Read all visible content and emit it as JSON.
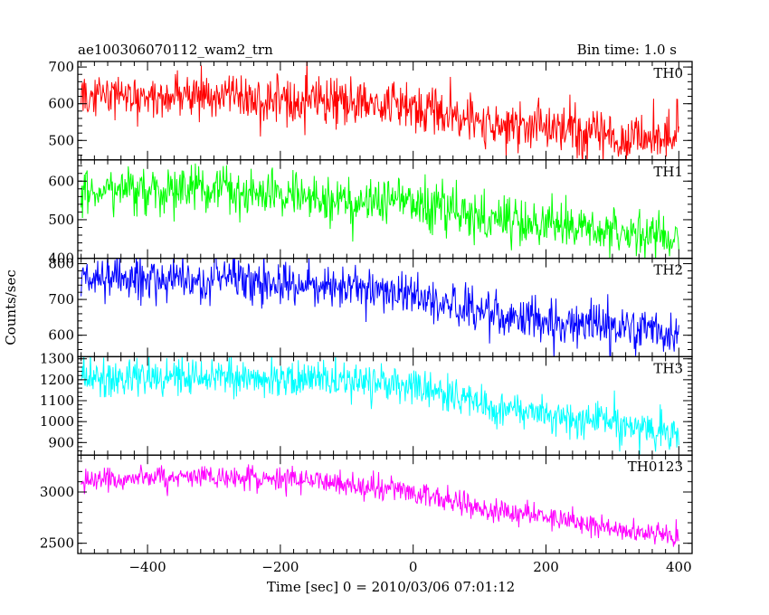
{
  "header": {
    "left_title": "ae100306070112_wam2_trn",
    "right_title": "Bin time: 1.0 s"
  },
  "axes": {
    "ylabel": "Counts/sec",
    "xlabel": "Time [sec] 0 = 2010/03/06 07:01:12"
  },
  "chart_data": {
    "type": "line",
    "x_range": [
      -505,
      420
    ],
    "x_ticks": [
      -400,
      -200,
      0,
      200,
      400
    ],
    "bin_time_s": 1.0,
    "panels": [
      {
        "name": "TH0",
        "color": "#ff0000",
        "y_range": [
          447,
          715
        ],
        "y_ticks": [
          500,
          600,
          700
        ],
        "trend": [
          [
            -500,
            615
          ],
          [
            -300,
            625
          ],
          [
            -150,
            610
          ],
          [
            0,
            590
          ],
          [
            100,
            555
          ],
          [
            250,
            525
          ],
          [
            400,
            505
          ]
        ],
        "noise_sd": 34
      },
      {
        "name": "TH1",
        "color": "#00ff00",
        "y_range": [
          400,
          655
        ],
        "y_ticks": [
          400,
          500,
          600
        ],
        "trend": [
          [
            -500,
            570
          ],
          [
            -300,
            580
          ],
          [
            -150,
            560
          ],
          [
            0,
            540
          ],
          [
            100,
            505
          ],
          [
            250,
            475
          ],
          [
            400,
            455
          ]
        ],
        "noise_sd": 30
      },
      {
        "name": "TH2",
        "color": "#0000ff",
        "y_range": [
          540,
          815
        ],
        "y_ticks": [
          600,
          700,
          800
        ],
        "trend": [
          [
            -500,
            755
          ],
          [
            -300,
            755
          ],
          [
            -150,
            745
          ],
          [
            0,
            710
          ],
          [
            100,
            665
          ],
          [
            250,
            630
          ],
          [
            400,
            600
          ]
        ],
        "noise_sd": 30
      },
      {
        "name": "TH3",
        "color": "#00ffff",
        "y_range": [
          840,
          1310
        ],
        "y_ticks": [
          900,
          1000,
          1100,
          1200,
          1300
        ],
        "trend": [
          [
            -500,
            1205
          ],
          [
            -300,
            1215
          ],
          [
            -150,
            1195
          ],
          [
            0,
            1170
          ],
          [
            100,
            1085
          ],
          [
            250,
            1010
          ],
          [
            400,
            945
          ]
        ],
        "noise_sd": 45
      },
      {
        "name": "TH0123",
        "color": "#ff00ff",
        "y_range": [
          2400,
          3360
        ],
        "y_ticks": [
          2500,
          3000
        ],
        "trend": [
          [
            -500,
            3110
          ],
          [
            -300,
            3150
          ],
          [
            -150,
            3110
          ],
          [
            0,
            3000
          ],
          [
            100,
            2840
          ],
          [
            250,
            2710
          ],
          [
            400,
            2540
          ]
        ],
        "noise_sd": 55
      }
    ]
  }
}
